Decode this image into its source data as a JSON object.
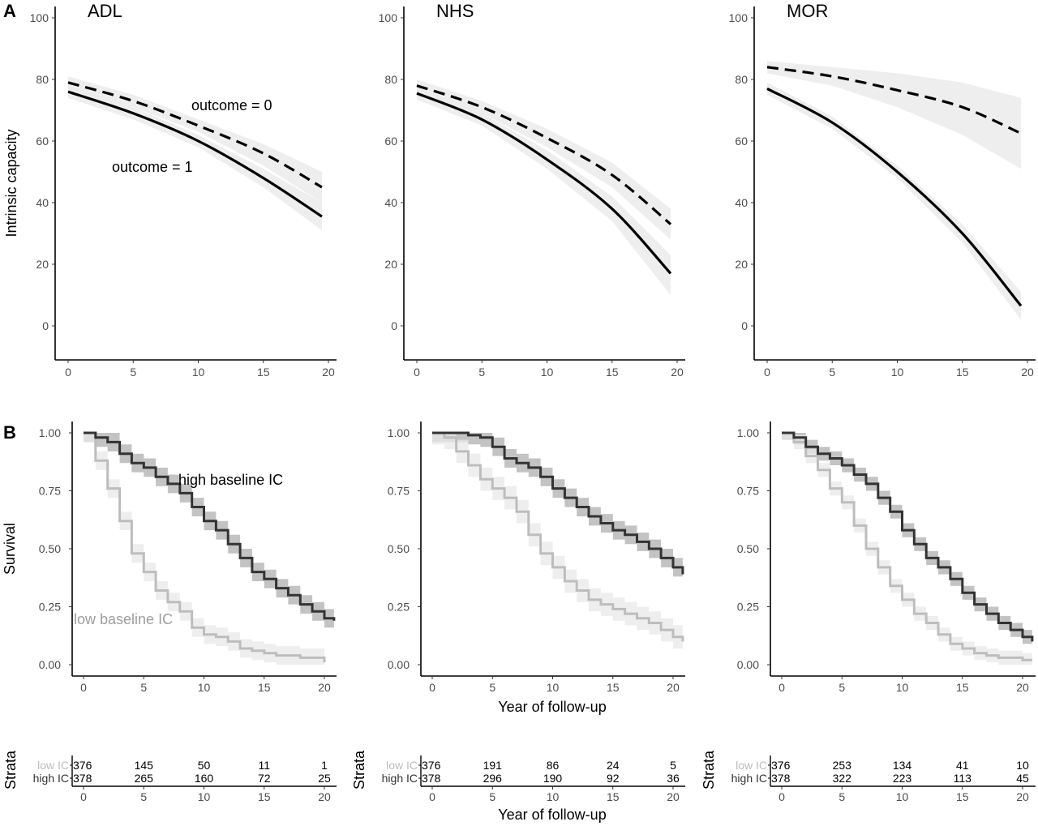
{
  "panel_labels": [
    "A",
    "B"
  ],
  "chart_data": [
    {
      "type": "line",
      "panel": "A",
      "titles": [
        "ADL",
        "NHS",
        "MOR"
      ],
      "ylabel": "Intrinsic capacity",
      "xlabel": "",
      "xlim": [
        0,
        20
      ],
      "ylim": [
        -10,
        105
      ],
      "xticks": [
        0,
        5,
        10,
        15,
        20
      ],
      "yticks": [
        0,
        20,
        40,
        60,
        80,
        100
      ],
      "annotations": {
        "outcome0": "outcome = 0",
        "outcome1": "outcome = 1"
      },
      "facets": [
        {
          "title": "ADL",
          "series": [
            {
              "name": "outcome = 0",
              "style": "dashed",
              "x": [
                0,
                5,
                10,
                15,
                19.5
              ],
              "y": [
                79,
                73,
                65,
                56,
                45
              ],
              "lo": [
                77,
                71,
                63,
                52,
                40
              ],
              "hi": [
                81,
                75,
                67,
                59,
                50
              ]
            },
            {
              "name": "outcome = 1",
              "style": "solid",
              "x": [
                0,
                5,
                10,
                15,
                19.5
              ],
              "y": [
                76,
                69,
                60,
                48,
                35.5
              ],
              "lo": [
                74,
                67,
                58,
                45,
                31
              ],
              "hi": [
                78,
                71,
                62,
                51,
                40
              ]
            }
          ]
        },
        {
          "title": "NHS",
          "series": [
            {
              "name": "outcome = 0",
              "style": "dashed",
              "x": [
                0,
                5,
                10,
                15,
                19.5
              ],
              "y": [
                78,
                71,
                61,
                49,
                33
              ],
              "lo": [
                76,
                69,
                58,
                45,
                28
              ],
              "hi": [
                80,
                73,
                64,
                53,
                38
              ]
            },
            {
              "name": "outcome = 1",
              "style": "solid",
              "x": [
                0,
                5,
                10,
                15,
                19.5
              ],
              "y": [
                75.5,
                67,
                54,
                38,
                17
              ],
              "lo": [
                73.5,
                65,
                51,
                34,
                10
              ],
              "hi": [
                77.5,
                69,
                57,
                42,
                23
              ]
            }
          ]
        },
        {
          "title": "MOR",
          "series": [
            {
              "name": "outcome = 0",
              "style": "dashed",
              "x": [
                0,
                5,
                10,
                15,
                19.5
              ],
              "y": [
                84,
                81,
                76.5,
                71,
                62.5
              ],
              "lo": [
                82,
                78,
                71,
                62,
                51
              ],
              "hi": [
                86,
                84,
                82,
                79,
                74
              ]
            },
            {
              "name": "outcome = 1",
              "style": "solid",
              "x": [
                0,
                5,
                10,
                15,
                19.5
              ],
              "y": [
                77,
                66,
                50,
                30,
                6.5
              ],
              "lo": [
                75,
                64,
                48,
                27,
                2
              ],
              "hi": [
                79,
                68,
                52,
                33,
                11
              ]
            }
          ]
        }
      ]
    },
    {
      "type": "line",
      "panel": "B",
      "step": true,
      "ylabel": "Survival",
      "xlabel": "Year of follow-up",
      "xlim": [
        -1,
        21
      ],
      "ylim": [
        -0.04,
        1.07
      ],
      "xticks": [
        0,
        5,
        10,
        15,
        20
      ],
      "yticks": [
        0.0,
        0.25,
        0.5,
        0.75,
        1.0
      ],
      "ytick_labels": [
        "0.00",
        "0.25",
        "0.50",
        "0.75",
        "1.00"
      ],
      "annotations": {
        "high": "high baseline IC",
        "low": "low baseline IC"
      },
      "colors": {
        "high": "#333333",
        "high_band": "#bdbdbd",
        "low": "#bdbdbd",
        "low_band": "#e8e8e8"
      },
      "facets": [
        {
          "title": "ADL",
          "series": [
            {
              "name": "high baseline IC",
              "x": [
                0,
                1,
                2,
                3,
                4,
                5,
                6,
                7,
                8,
                9,
                10,
                11,
                12,
                13,
                14,
                15,
                16,
                17,
                18,
                19,
                20,
                20.8
              ],
              "y": [
                1.0,
                0.98,
                0.96,
                0.91,
                0.87,
                0.85,
                0.81,
                0.78,
                0.74,
                0.68,
                0.62,
                0.58,
                0.52,
                0.46,
                0.4,
                0.37,
                0.33,
                0.3,
                0.26,
                0.23,
                0.2,
                0.19
              ],
              "band": 0.04
            },
            {
              "name": "low baseline IC",
              "x": [
                0,
                1,
                2,
                3,
                4,
                5,
                6,
                7,
                8,
                9,
                10,
                11,
                12,
                13,
                14,
                15,
                16,
                17,
                18,
                19,
                20
              ],
              "y": [
                1.0,
                0.88,
                0.76,
                0.62,
                0.48,
                0.4,
                0.32,
                0.27,
                0.23,
                0.16,
                0.13,
                0.12,
                0.1,
                0.07,
                0.06,
                0.05,
                0.04,
                0.04,
                0.03,
                0.03,
                0.01
              ],
              "band": 0.04
            }
          ]
        },
        {
          "title": "NHS",
          "series": [
            {
              "name": "high baseline IC",
              "x": [
                0,
                1,
                2,
                3,
                4,
                5,
                6,
                7,
                8,
                9,
                10,
                11,
                12,
                13,
                14,
                15,
                16,
                17,
                18,
                19,
                20,
                20.8
              ],
              "y": [
                1.0,
                1.0,
                1.0,
                0.99,
                0.98,
                0.94,
                0.89,
                0.87,
                0.85,
                0.81,
                0.76,
                0.72,
                0.68,
                0.64,
                0.61,
                0.58,
                0.56,
                0.53,
                0.5,
                0.46,
                0.42,
                0.39
              ],
              "band": 0.04
            },
            {
              "name": "low baseline IC",
              "x": [
                0,
                1,
                2,
                3,
                4,
                5,
                6,
                7,
                8,
                9,
                10,
                11,
                12,
                13,
                14,
                15,
                16,
                17,
                18,
                19,
                20,
                20.8
              ],
              "y": [
                1.0,
                0.98,
                0.92,
                0.86,
                0.8,
                0.76,
                0.72,
                0.66,
                0.56,
                0.48,
                0.42,
                0.36,
                0.32,
                0.28,
                0.26,
                0.24,
                0.22,
                0.2,
                0.18,
                0.15,
                0.12,
                0.1
              ],
              "band": 0.05
            }
          ]
        },
        {
          "title": "MOR",
          "series": [
            {
              "name": "high baseline IC",
              "x": [
                0,
                1,
                2,
                3,
                4,
                5,
                6,
                7,
                8,
                9,
                10,
                11,
                12,
                13,
                14,
                15,
                16,
                17,
                18,
                19,
                20,
                20.8
              ],
              "y": [
                1.0,
                0.98,
                0.94,
                0.91,
                0.89,
                0.86,
                0.82,
                0.78,
                0.72,
                0.66,
                0.58,
                0.52,
                0.46,
                0.42,
                0.37,
                0.31,
                0.26,
                0.22,
                0.18,
                0.15,
                0.12,
                0.1
              ],
              "band": 0.03
            },
            {
              "name": "low baseline IC",
              "x": [
                0,
                1,
                2,
                3,
                4,
                5,
                6,
                7,
                8,
                9,
                10,
                11,
                12,
                13,
                14,
                15,
                16,
                17,
                18,
                19,
                20,
                20.8
              ],
              "y": [
                1.0,
                0.96,
                0.9,
                0.84,
                0.76,
                0.7,
                0.6,
                0.5,
                0.42,
                0.34,
                0.28,
                0.22,
                0.18,
                0.13,
                0.09,
                0.07,
                0.05,
                0.04,
                0.03,
                0.03,
                0.02,
                0.02
              ],
              "band": 0.03
            }
          ]
        }
      ]
    },
    {
      "type": "table",
      "panel": "B-risk-table",
      "ylabel": "Strata",
      "xlabel": "Year of follow-up",
      "xticks": [
        0,
        5,
        10,
        15,
        20
      ],
      "row_labels": [
        "low IC",
        "high IC"
      ],
      "row_colors": [
        "#bdbdbd",
        "#333333"
      ],
      "facets": [
        {
          "title": "ADL",
          "rows": [
            [
              "376",
              "145",
              "50",
              "11",
              "1"
            ],
            [
              "378",
              "265",
              "160",
              "72",
              "25"
            ]
          ]
        },
        {
          "title": "NHS",
          "rows": [
            [
              "376",
              "191",
              "86",
              "24",
              "5"
            ],
            [
              "378",
              "296",
              "190",
              "92",
              "36"
            ]
          ]
        },
        {
          "title": "MOR",
          "rows": [
            [
              "376",
              "253",
              "134",
              "41",
              "10"
            ],
            [
              "378",
              "322",
              "223",
              "113",
              "45"
            ]
          ]
        }
      ]
    }
  ]
}
